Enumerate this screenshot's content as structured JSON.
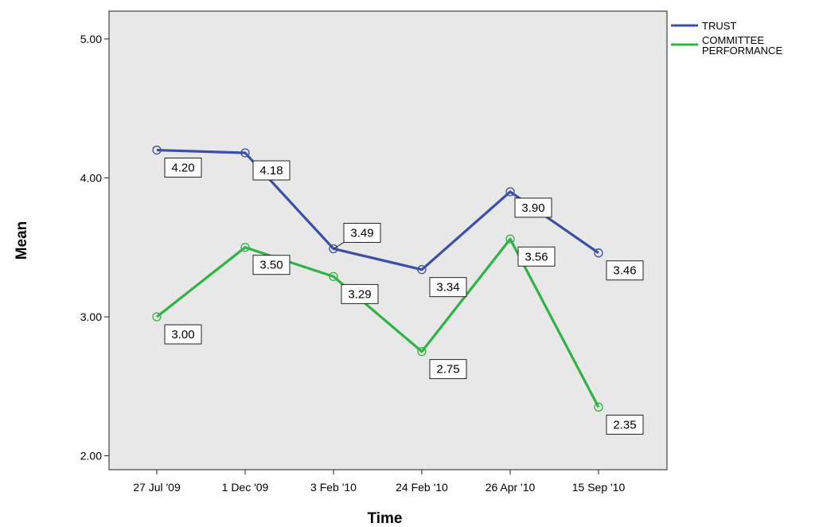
{
  "chart_data": {
    "type": "line",
    "title": "",
    "xlabel": "Time",
    "ylabel": "Mean",
    "categories": [
      "27 Jul '09",
      "1 Dec '09",
      "3 Feb '10",
      "24 Feb '10",
      "26 Apr '10",
      "15 Sep '10"
    ],
    "ylim": [
      1.9,
      5.2
    ],
    "yticks": [
      2.0,
      3.0,
      4.0,
      5.0
    ],
    "ytick_labels": [
      "2.00",
      "3.00",
      "4.00",
      "5.00"
    ],
    "grid": false,
    "legend_position": "top-right outside",
    "series": [
      {
        "name": "TRUST",
        "color": "#3c4fa8",
        "values": [
          4.2,
          4.18,
          3.49,
          3.34,
          3.9,
          3.46
        ],
        "labels": [
          "4.20",
          "4.18",
          "3.49",
          "3.34",
          "3.90",
          "3.46"
        ]
      },
      {
        "name": "COMMITTEE PERFORMANCE",
        "name_lines": [
          "COMMITTEE",
          "PERFORMANCE"
        ],
        "color": "#2fb344",
        "values": [
          3.0,
          3.5,
          3.29,
          2.75,
          3.56,
          2.35
        ],
        "labels": [
          "3.00",
          "3.50",
          "3.29",
          "2.75",
          "3.56",
          "2.35"
        ]
      }
    ],
    "plot_background": "#e8e8e8"
  }
}
